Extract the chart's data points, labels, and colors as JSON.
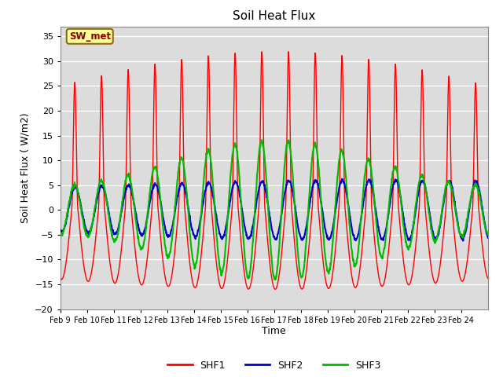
{
  "title": "Soil Heat Flux",
  "xlabel": "Time",
  "ylabel": "Soil Heat Flux ( W/m2)",
  "ylim": [
    -20,
    37
  ],
  "yticks": [
    -20,
    -15,
    -10,
    -5,
    0,
    5,
    10,
    15,
    20,
    25,
    30,
    35
  ],
  "date_labels": [
    "Feb 9",
    "Feb 10",
    "Feb 11",
    "Feb 12",
    "Feb 13",
    "Feb 14",
    "Feb 15",
    "Feb 16",
    "Feb 17",
    "Feb 18",
    "Feb 19",
    "Feb 20",
    "Feb 21",
    "Feb 22",
    "Feb 23",
    "Feb 24"
  ],
  "annotation_label": "SW_met",
  "annotation_box_facecolor": "#ffff99",
  "annotation_text_color": "#8B0000",
  "annotation_edge_color": "#8B6914",
  "fig_facecolor": "#ffffff",
  "plot_facecolor": "#dcdcdc",
  "grid_color": "#ffffff",
  "colors": {
    "SHF1": "#ff0000",
    "SHF2": "#0000cd",
    "SHF3": "#00bb00"
  },
  "linewidth_shf1": 1.0,
  "linewidth_shf2": 1.5,
  "linewidth_shf3": 1.5,
  "figsize": [
    6.4,
    4.8
  ],
  "dpi": 100
}
